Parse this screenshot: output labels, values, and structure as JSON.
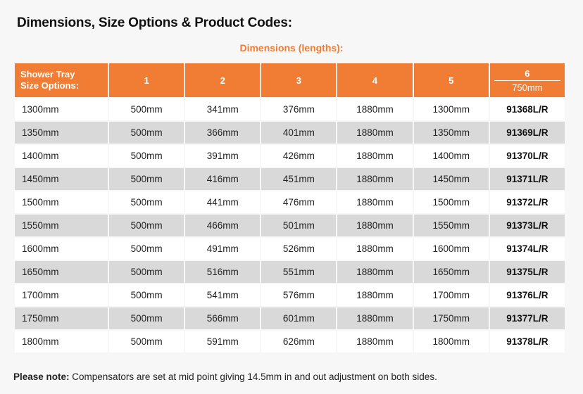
{
  "title": "Dimensions, Size Options & Product Codes:",
  "dimensions_caption": "Dimensions (lengths):",
  "table": {
    "header_first": [
      "Shower Tray",
      "Size Options:"
    ],
    "header_cols": [
      "1",
      "2",
      "3",
      "4",
      "5",
      "6"
    ],
    "header_col6_sub": "750mm",
    "rows": [
      [
        "1300mm",
        "500mm",
        "341mm",
        "376mm",
        "1880mm",
        "1300mm",
        "91368L/R"
      ],
      [
        "1350mm",
        "500mm",
        "366mm",
        "401mm",
        "1880mm",
        "1350mm",
        "91369L/R"
      ],
      [
        "1400mm",
        "500mm",
        "391mm",
        "426mm",
        "1880mm",
        "1400mm",
        "91370L/R"
      ],
      [
        "1450mm",
        "500mm",
        "416mm",
        "451mm",
        "1880mm",
        "1450mm",
        "91371L/R"
      ],
      [
        "1500mm",
        "500mm",
        "441mm",
        "476mm",
        "1880mm",
        "1500mm",
        "91372L/R"
      ],
      [
        "1550mm",
        "500mm",
        "466mm",
        "501mm",
        "1880mm",
        "1550mm",
        "91373L/R"
      ],
      [
        "1600mm",
        "500mm",
        "491mm",
        "526mm",
        "1880mm",
        "1600mm",
        "91374L/R"
      ],
      [
        "1650mm",
        "500mm",
        "516mm",
        "551mm",
        "1880mm",
        "1650mm",
        "91375L/R"
      ],
      [
        "1700mm",
        "500mm",
        "541mm",
        "576mm",
        "1880mm",
        "1700mm",
        "91376L/R"
      ],
      [
        "1750mm",
        "500mm",
        "566mm",
        "601mm",
        "1880mm",
        "1750mm",
        "91377L/R"
      ],
      [
        "1800mm",
        "500mm",
        "591mm",
        "626mm",
        "1880mm",
        "1800mm",
        "91378L/R"
      ]
    ]
  },
  "note": {
    "label": "Please note:",
    "text": " Compensators are set at mid point giving 14.5mm in and out adjustment on both sides."
  },
  "colors": {
    "accent": "#f07d33",
    "row_alt": "#d9d9d9"
  }
}
